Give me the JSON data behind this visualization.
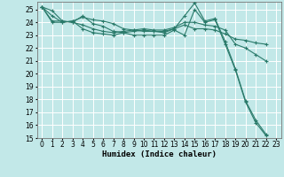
{
  "title": "",
  "xlabel": "Humidex (Indice chaleur)",
  "ylabel": "",
  "xlim": [
    -0.5,
    23.5
  ],
  "ylim": [
    15,
    25.6
  ],
  "yticks": [
    15,
    16,
    17,
    18,
    19,
    20,
    21,
    22,
    23,
    24,
    25
  ],
  "xticks": [
    0,
    1,
    2,
    3,
    4,
    5,
    6,
    7,
    8,
    9,
    10,
    11,
    12,
    13,
    14,
    15,
    16,
    17,
    18,
    19,
    20,
    21,
    22,
    23
  ],
  "bg_color": "#c2e8e8",
  "grid_color": "#ffffff",
  "line_color": "#2a7a6a",
  "series": [
    {
      "x": [
        0,
        1,
        2,
        3,
        4,
        5,
        6,
        7,
        8,
        9,
        10,
        11,
        12,
        13,
        14,
        15,
        16,
        17,
        18,
        19,
        20,
        21,
        22,
        23
      ],
      "y": [
        25.2,
        24.9,
        24.1,
        24.0,
        24.5,
        23.9,
        23.7,
        23.3,
        23.2,
        23.0,
        23.0,
        23.0,
        23.0,
        23.4,
        23.0,
        25.0,
        24.0,
        24.2,
        22.3,
        20.3,
        17.8,
        16.2,
        15.2,
        null
      ]
    },
    {
      "x": [
        0,
        1,
        2,
        3,
        4,
        5,
        6,
        7,
        8,
        9,
        10,
        11,
        12,
        13,
        14,
        15,
        16,
        17,
        18,
        19,
        20,
        21,
        22,
        23
      ],
      "y": [
        25.2,
        24.0,
        24.0,
        24.1,
        23.5,
        23.2,
        23.1,
        23.0,
        23.2,
        23.3,
        23.4,
        23.3,
        23.3,
        23.5,
        23.8,
        23.5,
        23.5,
        23.4,
        23.1,
        22.7,
        22.6,
        22.4,
        22.3,
        null
      ]
    },
    {
      "x": [
        0,
        1,
        2,
        3,
        4,
        5,
        6,
        7,
        8,
        9,
        10,
        11,
        12,
        13,
        14,
        15,
        16,
        17,
        18,
        19,
        20,
        21,
        22,
        23
      ],
      "y": [
        25.2,
        24.1,
        24.1,
        24.0,
        23.8,
        23.5,
        23.3,
        23.2,
        23.3,
        23.4,
        23.5,
        23.4,
        23.4,
        23.6,
        24.0,
        24.0,
        23.8,
        23.7,
        23.4,
        22.3,
        22.0,
        21.5,
        21.0,
        null
      ]
    },
    {
      "x": [
        0,
        1,
        2,
        3,
        4,
        5,
        6,
        7,
        8,
        9,
        10,
        11,
        12,
        13,
        14,
        15,
        16,
        17,
        18,
        19,
        20,
        21,
        22,
        23
      ],
      "y": [
        25.2,
        24.5,
        24.0,
        24.1,
        24.4,
        24.2,
        24.1,
        23.9,
        23.5,
        23.4,
        23.3,
        23.3,
        23.2,
        23.5,
        24.5,
        25.5,
        24.1,
        24.3,
        22.5,
        20.4,
        17.9,
        16.4,
        15.3,
        null
      ]
    }
  ]
}
